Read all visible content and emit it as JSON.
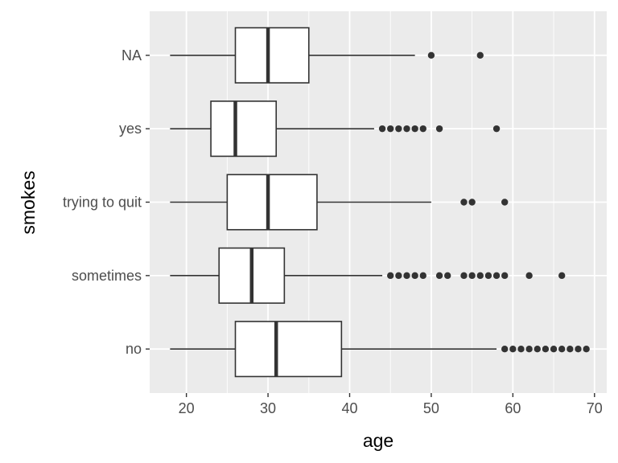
{
  "chart_data": {
    "type": "boxplot",
    "orientation": "horizontal",
    "xlabel": "age",
    "ylabel": "smokes",
    "xlim": [
      15.5,
      71.5
    ],
    "x_ticks": [
      20,
      30,
      40,
      50,
      60,
      70
    ],
    "grid": true,
    "legend": "none",
    "colors": {
      "panel": "#ebebeb",
      "grid_major": "#ffffff",
      "box_fill": "#ffffff",
      "box_line": "#333333",
      "outlier": "#333333",
      "tick_text": "#4d4d4d"
    },
    "categories": [
      "no",
      "sometimes",
      "trying to quit",
      "yes",
      "NA"
    ],
    "boxes": [
      {
        "category": "no",
        "whisker_low": 18,
        "q1": 26,
        "median": 31,
        "q3": 39,
        "whisker_high": 58,
        "outliers": [
          59,
          60,
          61,
          62,
          63,
          64,
          65,
          66,
          67,
          68,
          69
        ]
      },
      {
        "category": "sometimes",
        "whisker_low": 18,
        "q1": 24,
        "median": 28,
        "q3": 32,
        "whisker_high": 44,
        "outliers": [
          45,
          46,
          47,
          48,
          49,
          51,
          52,
          54,
          55,
          56,
          57,
          58,
          59,
          62,
          66
        ]
      },
      {
        "category": "trying to quit",
        "whisker_low": 18,
        "q1": 25,
        "median": 30,
        "q3": 36,
        "whisker_high": 50,
        "outliers": [
          54,
          55,
          59
        ]
      },
      {
        "category": "yes",
        "whisker_low": 18,
        "q1": 23,
        "median": 26,
        "q3": 31,
        "whisker_high": 43,
        "outliers": [
          44,
          45,
          46,
          47,
          48,
          49,
          51,
          58
        ]
      },
      {
        "category": "NA",
        "whisker_low": 18,
        "q1": 26,
        "median": 30,
        "q3": 35,
        "whisker_high": 48,
        "outliers": [
          50,
          56
        ]
      }
    ]
  }
}
